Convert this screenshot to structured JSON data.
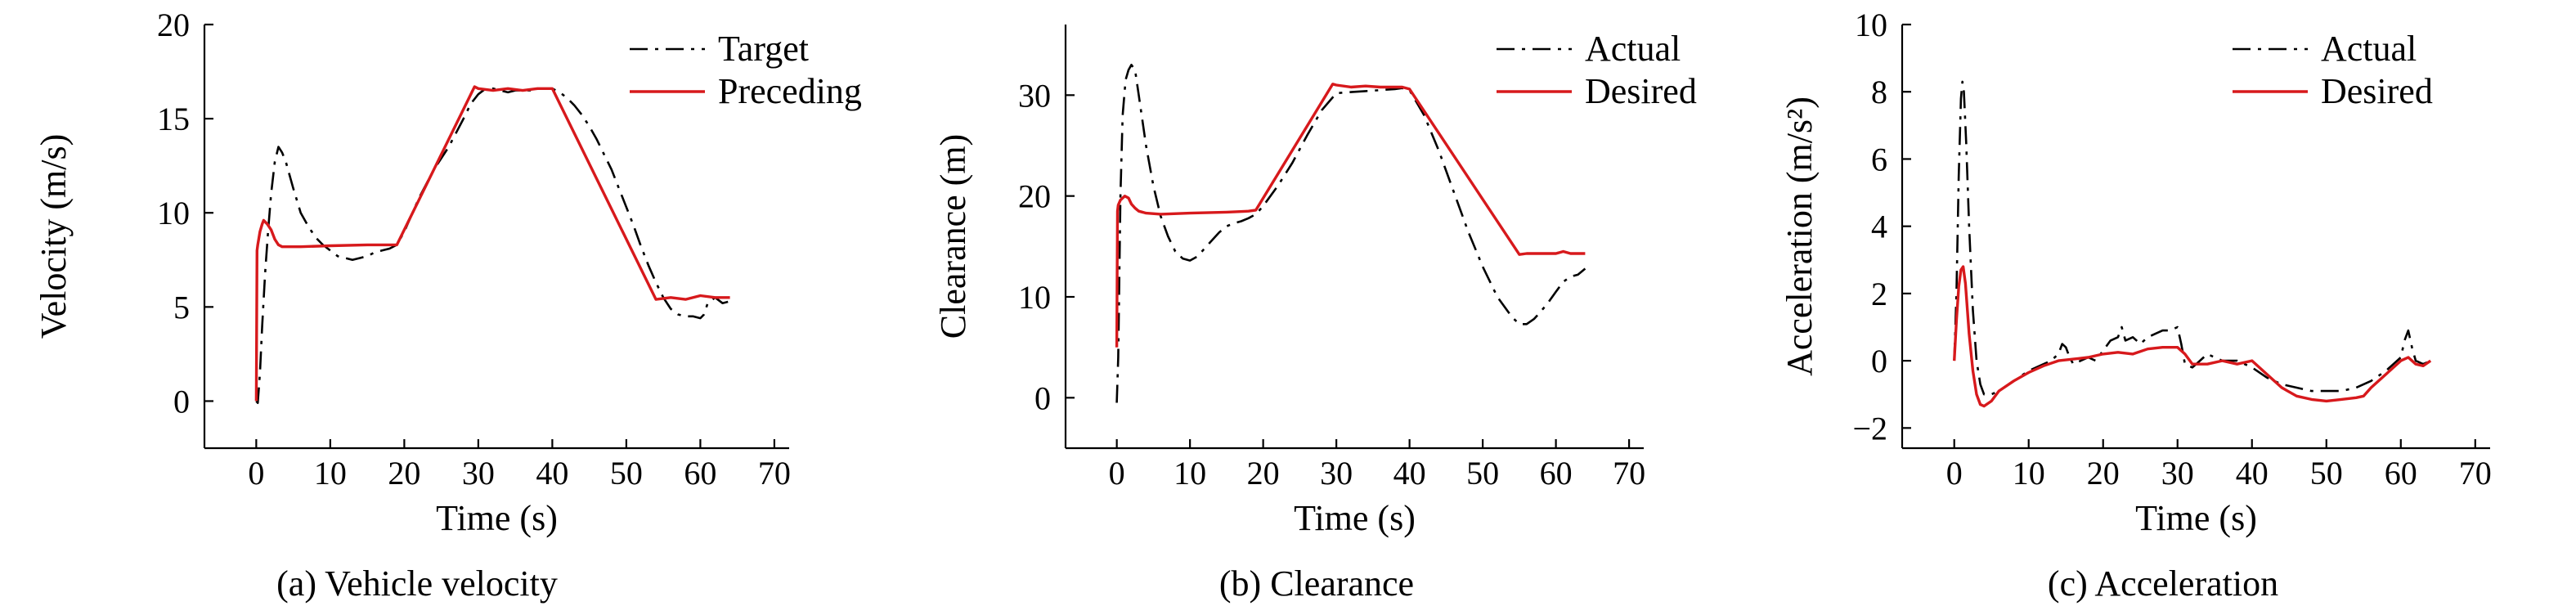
{
  "chart_data": [
    {
      "type": "line",
      "caption": "(a) Vehicle velocity",
      "xlabel": "Time (s)",
      "ylabel": "Velocity (m/s)",
      "xlim": [
        -7,
        72
      ],
      "ylim": [
        -2.5,
        20
      ],
      "xticks": [
        0,
        10,
        20,
        30,
        40,
        50,
        60,
        70
      ],
      "yticks": [
        0,
        5,
        10,
        15,
        20
      ],
      "legend_position": "top-right",
      "series": [
        {
          "name": "Target",
          "style": "dashdot",
          "color": "#000000",
          "x": [
            0,
            0.2,
            0.5,
            0.8,
            1.2,
            1.6,
            2,
            2.5,
            3,
            3.5,
            4,
            5,
            6,
            7,
            8,
            9,
            10,
            11,
            12,
            13,
            14,
            15,
            16,
            17,
            18,
            19,
            20,
            22,
            24,
            26,
            28,
            29,
            30,
            31,
            32,
            33,
            34,
            35,
            36,
            37,
            38,
            39,
            40,
            41,
            42,
            43,
            44,
            45,
            46,
            47,
            48,
            49,
            50,
            51,
            52,
            53,
            54,
            55,
            56,
            57,
            58,
            59,
            60,
            60.5,
            61,
            62,
            63,
            64
          ],
          "y": [
            0,
            -0.1,
            1.5,
            4,
            6.8,
            9,
            11,
            12.7,
            13.5,
            13.2,
            12.7,
            11.3,
            10,
            9.3,
            8.7,
            8.3,
            8,
            7.7,
            7.6,
            7.5,
            7.6,
            7.7,
            7.9,
            8,
            8.1,
            8.3,
            9,
            10.8,
            12.3,
            13.5,
            15,
            15.8,
            16.3,
            16.6,
            16.6,
            16.5,
            16.4,
            16.5,
            16.5,
            16.5,
            16.6,
            16.6,
            16.6,
            16.4,
            16.1,
            15.7,
            15.2,
            14.6,
            13.9,
            13.1,
            12.3,
            11.3,
            10.3,
            9.3,
            8.2,
            7.2,
            6.3,
            5.5,
            4.9,
            4.6,
            4.5,
            4.5,
            4.4,
            4.6,
            5.2,
            5.5,
            5.2,
            5.3
          ]
        },
        {
          "name": "Preceding",
          "style": "solid",
          "color": "#d7191c",
          "x": [
            0,
            0.1,
            0.2,
            0.5,
            0.8,
            1,
            1.5,
            2,
            2.5,
            3,
            3.5,
            4,
            6,
            10,
            15,
            18,
            19,
            29.5,
            30,
            32,
            34,
            36,
            38,
            40,
            54,
            56,
            58,
            60,
            62,
            64
          ],
          "y": [
            0,
            8,
            8.3,
            9,
            9.4,
            9.6,
            9.4,
            9.1,
            8.6,
            8.3,
            8.2,
            8.2,
            8.2,
            8.25,
            8.3,
            8.3,
            8.3,
            16.7,
            16.6,
            16.5,
            16.6,
            16.5,
            16.6,
            16.6,
            5.4,
            5.5,
            5.4,
            5.6,
            5.5,
            5.5
          ]
        }
      ]
    },
    {
      "type": "line",
      "caption": "(b) Clearance",
      "xlabel": "Time (s)",
      "ylabel": "Clearance (m)",
      "xlim": [
        -7,
        72
      ],
      "ylim": [
        -5,
        37
      ],
      "xticks": [
        0,
        10,
        20,
        30,
        40,
        50,
        60,
        70
      ],
      "yticks": [
        0,
        10,
        20,
        30
      ],
      "legend_position": "top-right",
      "series": [
        {
          "name": "Actual",
          "style": "dashdot",
          "color": "#000000",
          "x": [
            0,
            0.2,
            0.5,
            0.8,
            1.2,
            1.6,
            2,
            2.5,
            3,
            4,
            5,
            6,
            7,
            8,
            9,
            10,
            11,
            12,
            13,
            14,
            15,
            16,
            17,
            18,
            19,
            20,
            22,
            24,
            26,
            28,
            30,
            32,
            34,
            36,
            38,
            39,
            40,
            42,
            44,
            46,
            48,
            50,
            52,
            54,
            55,
            56,
            57,
            58,
            59,
            60,
            61,
            62,
            63,
            64
          ],
          "y": [
            -0.5,
            4,
            20,
            28,
            31.5,
            32.5,
            33,
            32.5,
            30,
            25,
            21,
            18,
            16,
            14.5,
            13.8,
            13.6,
            14,
            14.8,
            15.6,
            16.4,
            17,
            17.3,
            17.5,
            17.8,
            18.2,
            19,
            21,
            23.3,
            26,
            28.5,
            30.2,
            30.3,
            30.4,
            30.5,
            30.6,
            30.7,
            30.5,
            28,
            24.5,
            20.5,
            16.5,
            13,
            10,
            8,
            7.3,
            7.3,
            7.8,
            8.6,
            9.5,
            10.5,
            11.5,
            12,
            12.2,
            12.8
          ]
        },
        {
          "name": "Desired",
          "style": "solid",
          "color": "#d7191c",
          "x": [
            0,
            0.1,
            0.2,
            0.5,
            0.8,
            1.1,
            1.6,
            2,
            2.5,
            3,
            4,
            6,
            10,
            15,
            18,
            19,
            29.5,
            30,
            32,
            34,
            36,
            38,
            39,
            40,
            55,
            56,
            58,
            60,
            61,
            62,
            64
          ],
          "y": [
            5,
            18.5,
            19.1,
            19.6,
            19.8,
            20,
            19.8,
            19.2,
            18.8,
            18.5,
            18.3,
            18.2,
            18.3,
            18.4,
            18.5,
            18.6,
            31.1,
            31,
            30.8,
            30.9,
            30.8,
            30.8,
            30.8,
            30.6,
            14.2,
            14.3,
            14.3,
            14.3,
            14.5,
            14.3,
            14.3
          ]
        }
      ]
    },
    {
      "type": "line",
      "caption": "(c) Acceleration",
      "xlabel": "Time (s)",
      "ylabel": "Acceleration (m/s²)",
      "xlim": [
        -7,
        72
      ],
      "ylim": [
        -2.6,
        10
      ],
      "xticks": [
        0,
        10,
        20,
        30,
        40,
        50,
        60,
        70
      ],
      "yticks": [
        -2,
        0,
        2,
        4,
        6,
        8,
        10
      ],
      "legend_position": "top-right",
      "series": [
        {
          "name": "Actual",
          "style": "dashdot",
          "color": "#000000",
          "x": [
            0,
            0.3,
            0.6,
            0.9,
            1.1,
            1.3,
            1.6,
            2,
            2.5,
            3,
            3.5,
            4,
            5,
            6,
            8,
            10,
            12,
            13,
            14,
            14.5,
            15,
            15.5,
            16,
            17,
            18,
            19,
            20,
            21,
            22,
            22.5,
            23,
            24,
            25,
            26,
            27,
            28,
            29,
            30,
            30.5,
            31,
            32,
            33,
            34,
            35,
            36,
            37,
            38,
            40,
            42,
            44,
            46,
            48,
            50,
            52,
            54,
            56,
            58,
            60,
            60.5,
            61,
            61.5,
            62,
            63,
            64
          ],
          "y": [
            0,
            2,
            5.5,
            7.8,
            8.3,
            8,
            6.5,
            4,
            1.5,
            0,
            -0.7,
            -1,
            -1,
            -0.9,
            -0.6,
            -0.3,
            -0.1,
            0,
            0.2,
            0.5,
            0.4,
            0.1,
            -0.1,
            0,
            0.1,
            0,
            0.3,
            0.6,
            0.7,
            1,
            0.6,
            0.7,
            0.5,
            0.7,
            0.8,
            0.9,
            0.9,
            1,
            0.5,
            -0.1,
            -0.2,
            0,
            0.2,
            0.1,
            0,
            0,
            0,
            -0.2,
            -0.5,
            -0.7,
            -0.8,
            -0.9,
            -0.9,
            -0.9,
            -0.8,
            -0.6,
            -0.3,
            0.1,
            0.6,
            0.9,
            0.4,
            0,
            -0.1,
            0
          ]
        },
        {
          "name": "Desired",
          "style": "solid",
          "color": "#d7191c",
          "x": [
            0,
            0.3,
            0.6,
            0.9,
            1.2,
            1.5,
            2,
            2.5,
            3,
            3.5,
            4,
            5,
            6,
            8,
            10,
            12,
            14,
            16,
            18,
            20,
            22,
            24,
            26,
            28,
            30,
            31,
            32,
            34,
            36,
            38,
            40,
            42,
            44,
            46,
            48,
            50,
            52,
            54,
            55,
            56,
            58,
            60,
            61,
            62,
            63,
            64
          ],
          "y": [
            0,
            1.2,
            2.2,
            2.7,
            2.8,
            2.3,
            0.8,
            -0.3,
            -1,
            -1.3,
            -1.35,
            -1.2,
            -0.9,
            -0.6,
            -0.35,
            -0.15,
            0,
            0.05,
            0.1,
            0.2,
            0.25,
            0.2,
            0.35,
            0.4,
            0.4,
            0.2,
            -0.1,
            -0.1,
            0,
            -0.1,
            0,
            -0.4,
            -0.8,
            -1.05,
            -1.15,
            -1.2,
            -1.15,
            -1.1,
            -1.05,
            -0.8,
            -0.4,
            0,
            0.1,
            -0.1,
            -0.15,
            0
          ]
        }
      ]
    }
  ]
}
